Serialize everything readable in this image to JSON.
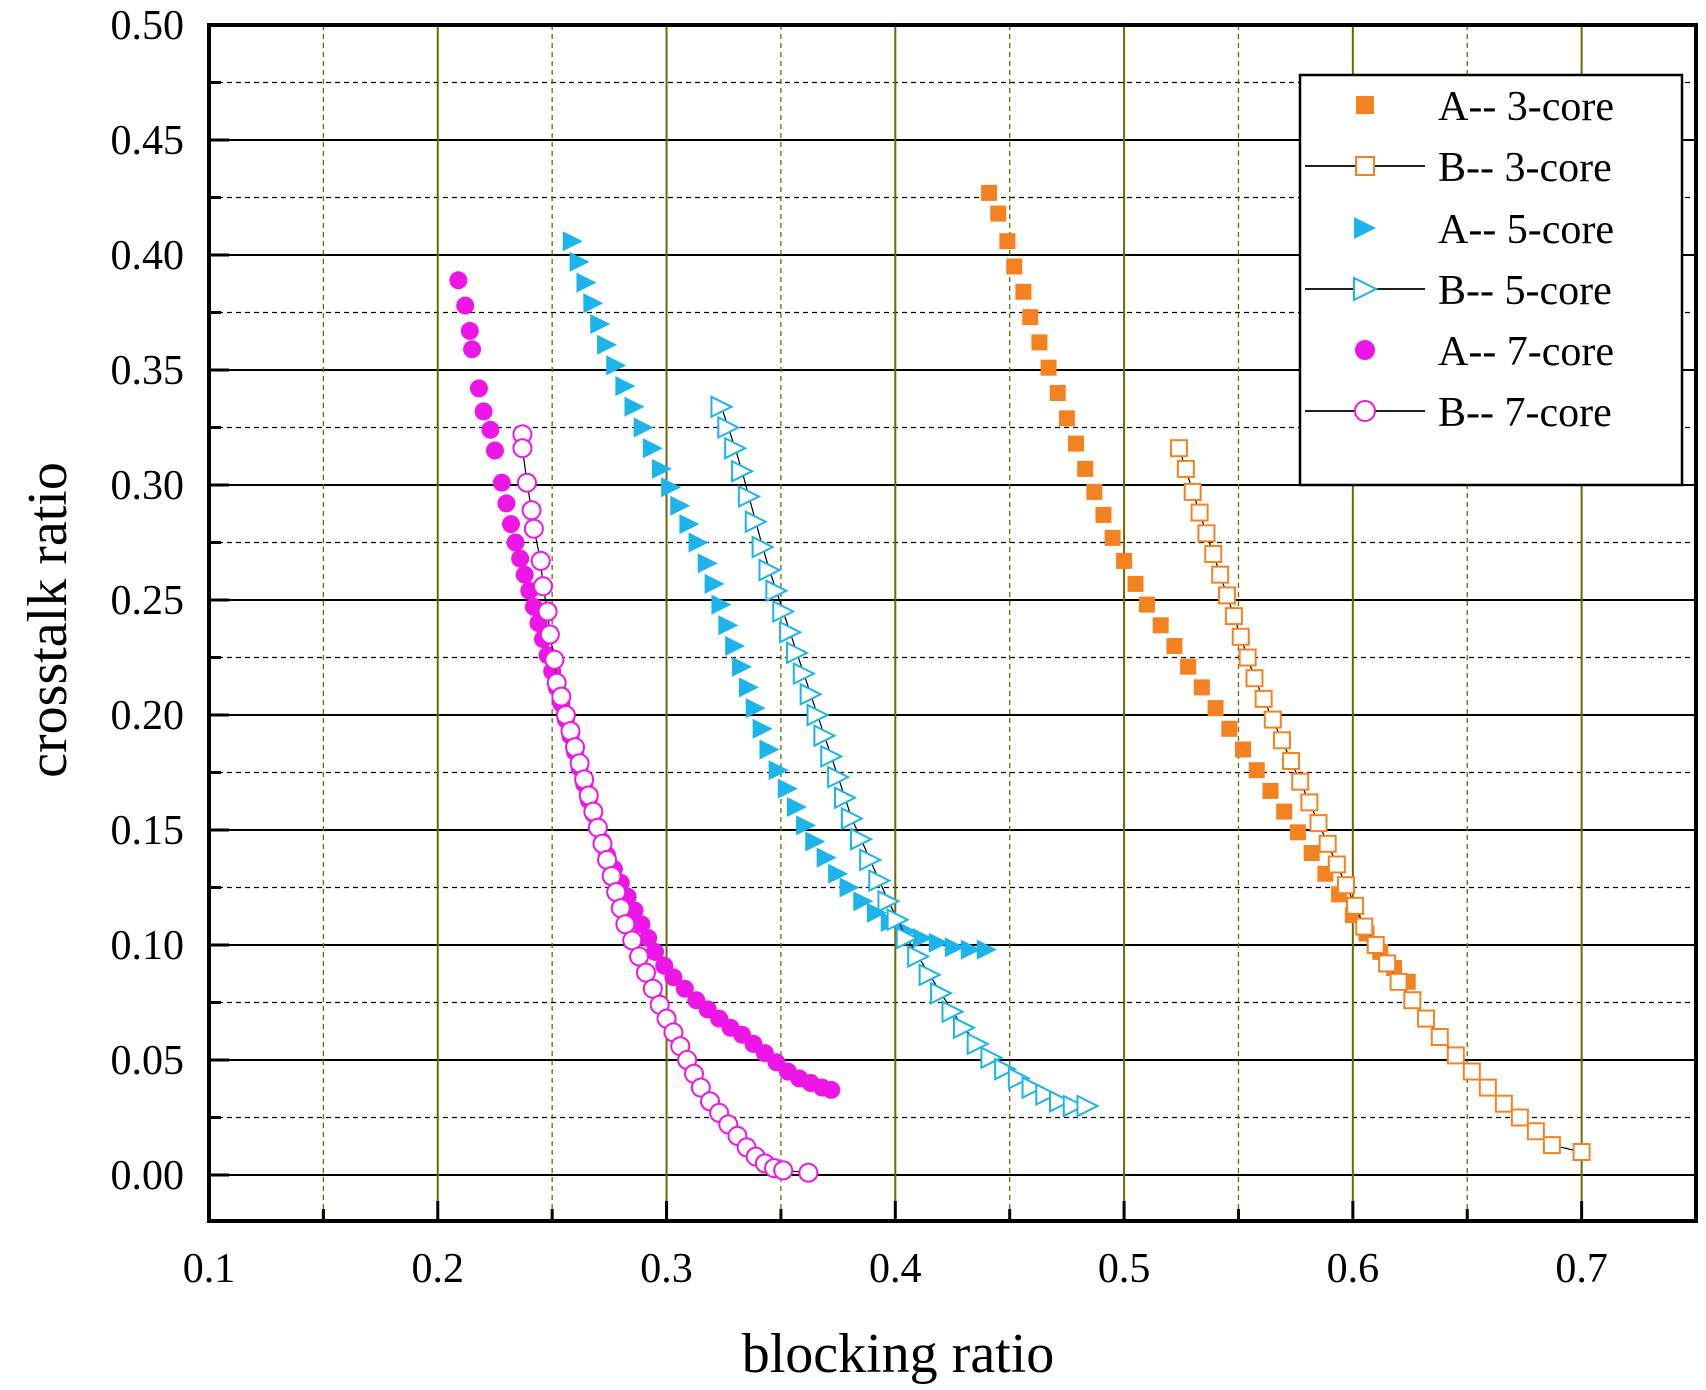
{
  "chart_data": {
    "type": "scatter",
    "title": "",
    "xlabel": "blocking ratio",
    "ylabel": "crosstalk ratio",
    "xlim": [
      0.1,
      0.75
    ],
    "ylim": [
      -0.02,
      0.5
    ],
    "x_ticks": [
      "0.1",
      "0.2",
      "0.3",
      "0.4",
      "0.5",
      "0.6",
      "0.7"
    ],
    "x_tick_values": [
      0.1,
      0.2,
      0.3,
      0.4,
      0.5,
      0.6,
      0.7
    ],
    "y_ticks": [
      "0.00",
      "0.05",
      "0.10",
      "0.15",
      "0.20",
      "0.25",
      "0.30",
      "0.35",
      "0.40",
      "0.45",
      "0.50"
    ],
    "y_tick_values": [
      0.0,
      0.05,
      0.1,
      0.15,
      0.2,
      0.25,
      0.3,
      0.35,
      0.4,
      0.45,
      0.5
    ],
    "grid": true,
    "legend_position": "top-right",
    "colors": {
      "orange": "#f58220",
      "cyan": "#1cb4ea",
      "magenta": "#ee16e6",
      "major_grid": "#000000",
      "vertical_grid": "#6b6b00"
    },
    "series": [
      {
        "name": "A-- 3-core",
        "marker": "square",
        "filled": true,
        "line": false,
        "color": "#f58220",
        "points": [
          [
            0.441,
            0.427
          ],
          [
            0.445,
            0.418
          ],
          [
            0.449,
            0.406
          ],
          [
            0.452,
            0.395
          ],
          [
            0.456,
            0.384
          ],
          [
            0.459,
            0.373
          ],
          [
            0.463,
            0.362
          ],
          [
            0.467,
            0.351
          ],
          [
            0.471,
            0.34
          ],
          [
            0.475,
            0.329
          ],
          [
            0.479,
            0.318
          ],
          [
            0.483,
            0.307
          ],
          [
            0.487,
            0.297
          ],
          [
            0.491,
            0.287
          ],
          [
            0.495,
            0.277
          ],
          [
            0.5,
            0.267
          ],
          [
            0.505,
            0.257
          ],
          [
            0.51,
            0.248
          ],
          [
            0.516,
            0.239
          ],
          [
            0.522,
            0.23
          ],
          [
            0.528,
            0.221
          ],
          [
            0.534,
            0.212
          ],
          [
            0.54,
            0.203
          ],
          [
            0.546,
            0.194
          ],
          [
            0.552,
            0.185
          ],
          [
            0.558,
            0.176
          ],
          [
            0.564,
            0.167
          ],
          [
            0.57,
            0.158
          ],
          [
            0.576,
            0.149
          ],
          [
            0.582,
            0.14
          ],
          [
            0.588,
            0.131
          ],
          [
            0.594,
            0.122
          ],
          [
            0.6,
            0.113
          ],
          [
            0.606,
            0.105
          ],
          [
            0.612,
            0.097
          ],
          [
            0.618,
            0.09
          ],
          [
            0.624,
            0.084
          ]
        ]
      },
      {
        "name": "B-- 3-core",
        "marker": "square",
        "filled": false,
        "line": true,
        "color": "#f58220",
        "points": [
          [
            0.524,
            0.316
          ],
          [
            0.527,
            0.307
          ],
          [
            0.53,
            0.297
          ],
          [
            0.533,
            0.288
          ],
          [
            0.536,
            0.279
          ],
          [
            0.539,
            0.27
          ],
          [
            0.542,
            0.261
          ],
          [
            0.545,
            0.252
          ],
          [
            0.548,
            0.243
          ],
          [
            0.551,
            0.234
          ],
          [
            0.554,
            0.225
          ],
          [
            0.557,
            0.216
          ],
          [
            0.561,
            0.207
          ],
          [
            0.565,
            0.198
          ],
          [
            0.569,
            0.189
          ],
          [
            0.573,
            0.18
          ],
          [
            0.577,
            0.171
          ],
          [
            0.581,
            0.162
          ],
          [
            0.585,
            0.153
          ],
          [
            0.589,
            0.144
          ],
          [
            0.593,
            0.135
          ],
          [
            0.597,
            0.126
          ],
          [
            0.601,
            0.117
          ],
          [
            0.605,
            0.108
          ],
          [
            0.61,
            0.1
          ],
          [
            0.615,
            0.092
          ],
          [
            0.62,
            0.084
          ],
          [
            0.626,
            0.076
          ],
          [
            0.632,
            0.068
          ],
          [
            0.638,
            0.06
          ],
          [
            0.645,
            0.052
          ],
          [
            0.652,
            0.045
          ],
          [
            0.659,
            0.038
          ],
          [
            0.666,
            0.031
          ],
          [
            0.673,
            0.025
          ],
          [
            0.68,
            0.019
          ],
          [
            0.687,
            0.013
          ],
          [
            0.7,
            0.01
          ]
        ]
      },
      {
        "name": "A-- 5-core",
        "marker": "triangle-right",
        "filled": true,
        "line": false,
        "color": "#1cb4ea",
        "points": [
          [
            0.259,
            0.406
          ],
          [
            0.262,
            0.397
          ],
          [
            0.265,
            0.388
          ],
          [
            0.268,
            0.379
          ],
          [
            0.271,
            0.37
          ],
          [
            0.274,
            0.361
          ],
          [
            0.278,
            0.352
          ],
          [
            0.282,
            0.343
          ],
          [
            0.286,
            0.334
          ],
          [
            0.29,
            0.325
          ],
          [
            0.294,
            0.316
          ],
          [
            0.298,
            0.307
          ],
          [
            0.302,
            0.299
          ],
          [
            0.306,
            0.291
          ],
          [
            0.31,
            0.283
          ],
          [
            0.314,
            0.275
          ],
          [
            0.318,
            0.266
          ],
          [
            0.321,
            0.257
          ],
          [
            0.324,
            0.248
          ],
          [
            0.327,
            0.239
          ],
          [
            0.33,
            0.23
          ],
          [
            0.333,
            0.221
          ],
          [
            0.336,
            0.212
          ],
          [
            0.339,
            0.203
          ],
          [
            0.342,
            0.194
          ],
          [
            0.345,
            0.185
          ],
          [
            0.349,
            0.176
          ],
          [
            0.353,
            0.168
          ],
          [
            0.357,
            0.16
          ],
          [
            0.361,
            0.152
          ],
          [
            0.365,
            0.145
          ],
          [
            0.37,
            0.138
          ],
          [
            0.375,
            0.131
          ],
          [
            0.38,
            0.125
          ],
          [
            0.386,
            0.119
          ],
          [
            0.392,
            0.114
          ],
          [
            0.398,
            0.11
          ],
          [
            0.405,
            0.106
          ],
          [
            0.412,
            0.103
          ],
          [
            0.419,
            0.101
          ],
          [
            0.426,
            0.099
          ],
          [
            0.433,
            0.098
          ],
          [
            0.44,
            0.098
          ]
        ]
      },
      {
        "name": "B-- 5-core",
        "marker": "triangle-right",
        "filled": false,
        "line": true,
        "color": "#1cb4ea",
        "points": [
          [
            0.324,
            0.334
          ],
          [
            0.327,
            0.325
          ],
          [
            0.33,
            0.316
          ],
          [
            0.333,
            0.306
          ],
          [
            0.336,
            0.295
          ],
          [
            0.339,
            0.284
          ],
          [
            0.342,
            0.273
          ],
          [
            0.345,
            0.263
          ],
          [
            0.348,
            0.254
          ],
          [
            0.351,
            0.245
          ],
          [
            0.354,
            0.236
          ],
          [
            0.357,
            0.227
          ],
          [
            0.36,
            0.218
          ],
          [
            0.363,
            0.209
          ],
          [
            0.366,
            0.2
          ],
          [
            0.369,
            0.191
          ],
          [
            0.372,
            0.182
          ],
          [
            0.375,
            0.173
          ],
          [
            0.378,
            0.164
          ],
          [
            0.381,
            0.155
          ],
          [
            0.385,
            0.146
          ],
          [
            0.389,
            0.137
          ],
          [
            0.393,
            0.128
          ],
          [
            0.397,
            0.119
          ],
          [
            0.401,
            0.111
          ],
          [
            0.405,
            0.103
          ],
          [
            0.41,
            0.095
          ],
          [
            0.415,
            0.087
          ],
          [
            0.42,
            0.079
          ],
          [
            0.425,
            0.071
          ],
          [
            0.43,
            0.064
          ],
          [
            0.436,
            0.057
          ],
          [
            0.442,
            0.051
          ],
          [
            0.448,
            0.046
          ],
          [
            0.454,
            0.042
          ],
          [
            0.46,
            0.038
          ],
          [
            0.466,
            0.035
          ],
          [
            0.472,
            0.032
          ],
          [
            0.478,
            0.03
          ],
          [
            0.484,
            0.03
          ]
        ]
      },
      {
        "name": "A-- 7-core",
        "marker": "circle",
        "filled": true,
        "line": false,
        "color": "#ee16e6",
        "points": [
          [
            0.209,
            0.389
          ],
          [
            0.212,
            0.378
          ],
          [
            0.214,
            0.367
          ],
          [
            0.215,
            0.359
          ],
          [
            0.218,
            0.342
          ],
          [
            0.22,
            0.332
          ],
          [
            0.223,
            0.324
          ],
          [
            0.225,
            0.315
          ],
          [
            0.228,
            0.301
          ],
          [
            0.23,
            0.292
          ],
          [
            0.232,
            0.283
          ],
          [
            0.234,
            0.275
          ],
          [
            0.236,
            0.268
          ],
          [
            0.238,
            0.261
          ],
          [
            0.24,
            0.254
          ],
          [
            0.242,
            0.247
          ],
          [
            0.244,
            0.24
          ],
          [
            0.246,
            0.233
          ],
          [
            0.248,
            0.226
          ],
          [
            0.25,
            0.219
          ],
          [
            0.252,
            0.212
          ],
          [
            0.254,
            0.205
          ],
          [
            0.256,
            0.198
          ],
          [
            0.258,
            0.191
          ],
          [
            0.26,
            0.184
          ],
          [
            0.262,
            0.177
          ],
          [
            0.264,
            0.17
          ],
          [
            0.266,
            0.163
          ],
          [
            0.268,
            0.157
          ],
          [
            0.27,
            0.151
          ],
          [
            0.272,
            0.145
          ],
          [
            0.274,
            0.139
          ],
          [
            0.277,
            0.133
          ],
          [
            0.28,
            0.127
          ],
          [
            0.283,
            0.121
          ],
          [
            0.286,
            0.115
          ],
          [
            0.289,
            0.109
          ],
          [
            0.292,
            0.103
          ],
          [
            0.295,
            0.097
          ],
          [
            0.299,
            0.091
          ],
          [
            0.303,
            0.086
          ],
          [
            0.308,
            0.081
          ],
          [
            0.313,
            0.076
          ],
          [
            0.318,
            0.072
          ],
          [
            0.323,
            0.068
          ],
          [
            0.328,
            0.064
          ],
          [
            0.333,
            0.061
          ],
          [
            0.338,
            0.057
          ],
          [
            0.343,
            0.053
          ],
          [
            0.348,
            0.049
          ],
          [
            0.353,
            0.045
          ],
          [
            0.358,
            0.042
          ],
          [
            0.363,
            0.04
          ],
          [
            0.368,
            0.038
          ],
          [
            0.372,
            0.037
          ]
        ]
      },
      {
        "name": "B-- 7-core",
        "marker": "circle",
        "filled": false,
        "line": true,
        "color": "#ee16e6",
        "points": [
          [
            0.237,
            0.322
          ],
          [
            0.237,
            0.316
          ],
          [
            0.239,
            0.301
          ],
          [
            0.241,
            0.289
          ],
          [
            0.242,
            0.281
          ],
          [
            0.245,
            0.267
          ],
          [
            0.246,
            0.256
          ],
          [
            0.248,
            0.245
          ],
          [
            0.249,
            0.235
          ],
          [
            0.251,
            0.224
          ],
          [
            0.252,
            0.214
          ],
          [
            0.254,
            0.208
          ],
          [
            0.256,
            0.2
          ],
          [
            0.258,
            0.193
          ],
          [
            0.26,
            0.186
          ],
          [
            0.262,
            0.179
          ],
          [
            0.264,
            0.172
          ],
          [
            0.266,
            0.165
          ],
          [
            0.268,
            0.158
          ],
          [
            0.27,
            0.151
          ],
          [
            0.272,
            0.144
          ],
          [
            0.274,
            0.137
          ],
          [
            0.276,
            0.13
          ],
          [
            0.278,
            0.123
          ],
          [
            0.28,
            0.116
          ],
          [
            0.282,
            0.109
          ],
          [
            0.285,
            0.102
          ],
          [
            0.288,
            0.095
          ],
          [
            0.291,
            0.088
          ],
          [
            0.294,
            0.081
          ],
          [
            0.297,
            0.074
          ],
          [
            0.3,
            0.068
          ],
          [
            0.303,
            0.062
          ],
          [
            0.306,
            0.056
          ],
          [
            0.309,
            0.05
          ],
          [
            0.312,
            0.044
          ],
          [
            0.315,
            0.038
          ],
          [
            0.319,
            0.032
          ],
          [
            0.323,
            0.027
          ],
          [
            0.327,
            0.022
          ],
          [
            0.331,
            0.017
          ],
          [
            0.335,
            0.012
          ],
          [
            0.339,
            0.008
          ],
          [
            0.343,
            0.005
          ],
          [
            0.347,
            0.003
          ],
          [
            0.351,
            0.002
          ],
          [
            0.362,
            0.001
          ]
        ]
      }
    ]
  }
}
